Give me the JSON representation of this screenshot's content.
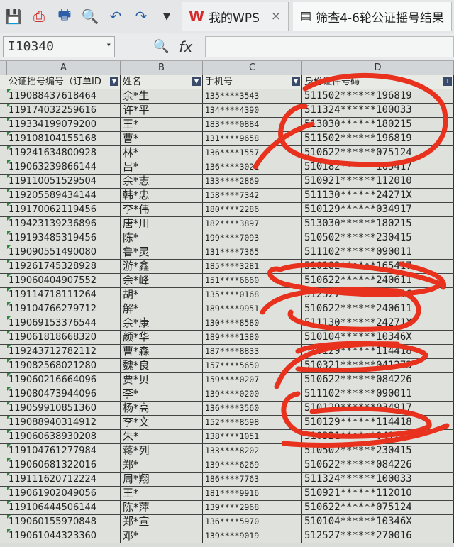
{
  "toolbar": {
    "icons": [
      "save-icon",
      "export-pdf-icon",
      "print-icon",
      "print-preview-icon",
      "undo-icon",
      "redo-icon",
      "dropdown-icon"
    ]
  },
  "tabs": [
    {
      "label": "我的WPS",
      "icon": "W"
    },
    {
      "label": "筛查4-6轮公证摇号结果",
      "icon": "sheet"
    }
  ],
  "formula_bar": {
    "cell_ref": "I10340",
    "fx": "fx"
  },
  "columns": [
    "A",
    "B",
    "C",
    "D"
  ],
  "headers": [
    "公证摇号编号（订单ID",
    "姓名",
    "手机号",
    "身份证件号码"
  ],
  "rows": [
    [
      "119088437618464",
      "余*生",
      "135****3543",
      "511502******196819"
    ],
    [
      "119174032259616",
      "许*平",
      "134****4390",
      "511324******100033"
    ],
    [
      "119334199079200",
      "王*",
      "183****0884",
      "513030******180215"
    ],
    [
      "119108104155168",
      "曹*",
      "131****9658",
      "511502******196819"
    ],
    [
      "119241634800928",
      "林*",
      "136****1557",
      "510622******075124"
    ],
    [
      "119063239866144",
      "吕*",
      "136****3021",
      "510182******165417"
    ],
    [
      "119110051529504",
      "余*志",
      "133****2869",
      "510921******112010"
    ],
    [
      "119205589434144",
      "韩*忠",
      "158****7342",
      "511130******24271X"
    ],
    [
      "119170062119456",
      "李*伟",
      "180****2286",
      "510129******034917"
    ],
    [
      "119423139236896",
      "唐*川",
      "182****3897",
      "513030******180215"
    ],
    [
      "119193485319456",
      "陈*",
      "199****7093",
      "510502******230415"
    ],
    [
      "119090551490080",
      "鲁*灵",
      "131****7365",
      "511102******090011"
    ],
    [
      "119261745328928",
      "游*鑫",
      "185****3281",
      "510182******165417"
    ],
    [
      "119060404907552",
      "余*峰",
      "151****6660",
      "510622******240611"
    ],
    [
      "119114718111264",
      "胡*",
      "135****0168",
      "512527******270016"
    ],
    [
      "119104766279712",
      "解*",
      "189****9951",
      "510622******240611"
    ],
    [
      "119069153376544",
      "余*康",
      "130****8580",
      "511130******24271X"
    ],
    [
      "119061818668320",
      "颜*华",
      "189****1380",
      "510104******10346X"
    ],
    [
      "119243712782112",
      "曹*森",
      "187****8833",
      "510129******114418"
    ],
    [
      "119082568021280",
      "魏*良",
      "157****5650",
      "510321******041273"
    ],
    [
      "119060216664096",
      "贾*贝",
      "159****0207",
      "510622******084226"
    ],
    [
      "119080473944096",
      "李*",
      "139****0200",
      "511102******090011"
    ],
    [
      "119059910851360",
      "杨*高",
      "136****3560",
      "510129******034917"
    ],
    [
      "119088940314912",
      "李*文",
      "152****8598",
      "510129******114418"
    ],
    [
      "119060638930208",
      "朱*",
      "138****1051",
      "510321******041273"
    ],
    [
      "119104761277984",
      "蒋*列",
      "133****8202",
      "510502******230415"
    ],
    [
      "119060681322016",
      "郑*",
      "139****6269",
      "510622******084226"
    ],
    [
      "119111620712224",
      "周*翔",
      "186****7763",
      "511324******100033"
    ],
    [
      "119061902049056",
      "王*",
      "181****9916",
      "510921******112010"
    ],
    [
      "119106444506144",
      "陈*萍",
      "139****2968",
      "510622******075124"
    ],
    [
      "119060155970848",
      "郑*宣",
      "136****5970",
      "510104******10346X"
    ],
    [
      "119061044323360",
      "邓*",
      "139****9019",
      "512527******270016"
    ]
  ],
  "annotation_color": "#e8321e"
}
